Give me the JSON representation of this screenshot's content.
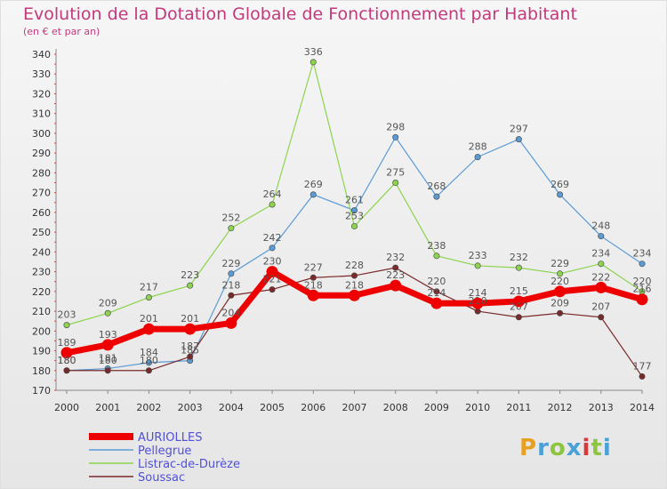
{
  "title": "Evolution de la Dotation Globale de Fonctionnement par Habitant",
  "subtitle": "(en € et par an)",
  "logo": {
    "text": "Proxiti",
    "colors": [
      "#e8a020",
      "#4aa0d8",
      "#8cc63f",
      "#d83a3a"
    ]
  },
  "chart_data": {
    "type": "line",
    "x": [
      "2000",
      "2001",
      "2002",
      "2003",
      "2004",
      "2005",
      "2006",
      "2007",
      "2008",
      "2009",
      "2010",
      "2011",
      "2012",
      "2013",
      "2014"
    ],
    "ylim": [
      170,
      340
    ],
    "yticks": [
      170,
      180,
      190,
      200,
      210,
      220,
      230,
      240,
      250,
      260,
      270,
      280,
      290,
      300,
      310,
      320,
      330,
      340
    ],
    "grid": false,
    "legend_position": "bottom-left",
    "series": [
      {
        "name": "Pellegrue",
        "color": "#5b9bd5",
        "width": 1.2,
        "values": [
          180,
          181,
          184,
          185,
          229,
          242,
          269,
          261,
          298,
          268,
          288,
          297,
          269,
          248,
          234
        ]
      },
      {
        "name": "Listrac-de-Durèze",
        "color": "#8cd44e",
        "width": 1.2,
        "values": [
          203,
          209,
          217,
          223,
          252,
          264,
          336,
          253,
          275,
          238,
          233,
          232,
          229,
          234,
          220
        ]
      },
      {
        "name": "Soussac",
        "color": "#7a2a2a",
        "width": 1.2,
        "values": [
          180,
          180,
          180,
          187,
          218,
          221,
          227,
          228,
          232,
          220,
          210,
          207,
          209,
          207,
          177
        ]
      },
      {
        "name": "AURIOLLES",
        "color": "#ee0000",
        "width": 7,
        "values": [
          189,
          193,
          201,
          201,
          204,
          230,
          218,
          218,
          223,
          214,
          214,
          215,
          220,
          222,
          216
        ]
      }
    ],
    "legend_order": [
      "AURIOLLES",
      "Pellegrue",
      "Listrac-de-Durèze",
      "Soussac"
    ]
  }
}
